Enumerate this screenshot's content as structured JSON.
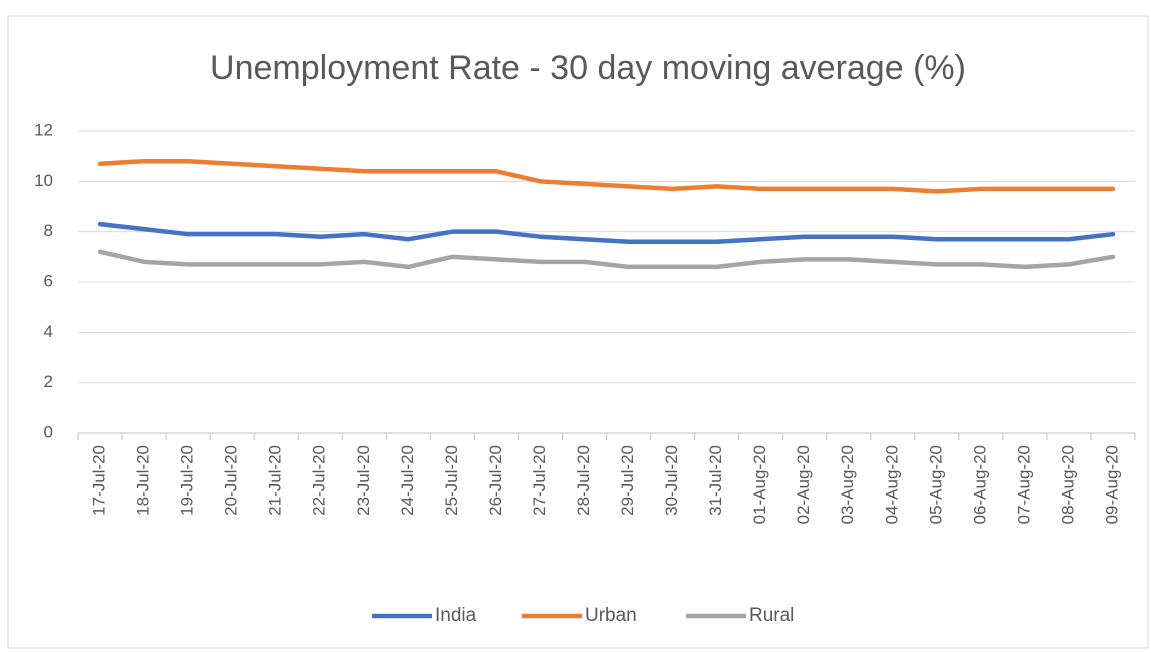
{
  "chart_data": {
    "type": "line",
    "title": "Unemployment Rate - 30 day moving average (%)",
    "categories": [
      "17-Jul-20",
      "18-Jul-20",
      "19-Jul-20",
      "20-Jul-20",
      "21-Jul-20",
      "22-Jul-20",
      "23-Jul-20",
      "24-Jul-20",
      "25-Jul-20",
      "26-Jul-20",
      "27-Jul-20",
      "28-Jul-20",
      "29-Jul-20",
      "30-Jul-20",
      "31-Jul-20",
      "01-Aug-20",
      "02-Aug-20",
      "03-Aug-20",
      "04-Aug-20",
      "05-Aug-20",
      "06-Aug-20",
      "07-Aug-20",
      "08-Aug-20",
      "09-Aug-20"
    ],
    "series": [
      {
        "name": "India",
        "color": "#4472c4",
        "values": [
          8.3,
          8.1,
          7.9,
          7.9,
          7.9,
          7.8,
          7.9,
          7.7,
          8.0,
          8.0,
          7.8,
          7.7,
          7.6,
          7.6,
          7.6,
          7.7,
          7.8,
          7.8,
          7.8,
          7.7,
          7.7,
          7.7,
          7.7,
          7.9
        ]
      },
      {
        "name": "Urban",
        "color": "#ed7d31",
        "values": [
          10.7,
          10.8,
          10.8,
          10.7,
          10.6,
          10.5,
          10.4,
          10.4,
          10.4,
          10.4,
          10.0,
          9.9,
          9.8,
          9.7,
          9.8,
          9.7,
          9.7,
          9.7,
          9.7,
          9.6,
          9.7,
          9.7,
          9.7,
          9.7
        ]
      },
      {
        "name": "Rural",
        "color": "#a5a5a5",
        "values": [
          7.2,
          6.8,
          6.7,
          6.7,
          6.7,
          6.7,
          6.8,
          6.6,
          7.0,
          6.9,
          6.8,
          6.8,
          6.6,
          6.6,
          6.6,
          6.8,
          6.9,
          6.9,
          6.8,
          6.7,
          6.7,
          6.6,
          6.7,
          7.0
        ]
      }
    ],
    "ylim": [
      0,
      12
    ],
    "yticks": [
      0,
      2,
      4,
      6,
      8,
      10,
      12
    ],
    "grid": true,
    "legend": "bottom"
  }
}
